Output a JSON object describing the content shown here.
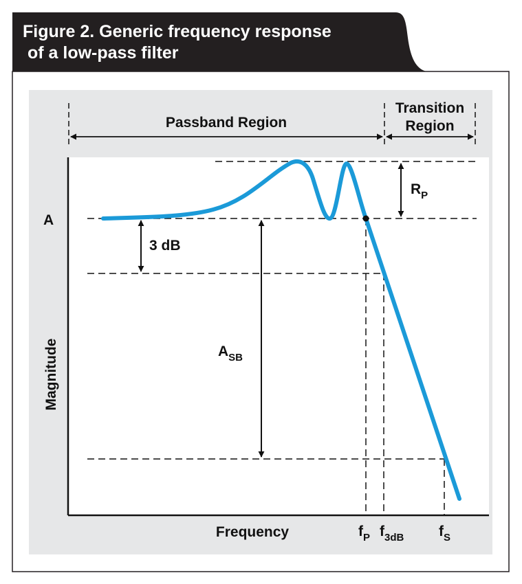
{
  "figure": {
    "title_line1": "Figure 2. Generic frequency response",
    "title_line2": "of a low-pass filter"
  },
  "regions": {
    "passband": "Passband Region",
    "transition_line1": "Transition",
    "transition_line2": "Region"
  },
  "axes": {
    "y_label": "Magnitude",
    "x_label": "Frequency",
    "y_mark": "A"
  },
  "annotations": {
    "three_db": "3 dB",
    "rp_main": "R",
    "rp_sub": "P",
    "asb_main": "A",
    "asb_sub": "SB"
  },
  "frequency_marks": {
    "fp_main": "f",
    "fp_sub": "P",
    "f3db_main": "f",
    "f3db_sub": "3dB",
    "fs_main": "f",
    "fs_sub": "S"
  },
  "colors": {
    "curve": "#1b9ad8",
    "panel": "#e6e7e8",
    "title_bg": "#231f20"
  }
}
